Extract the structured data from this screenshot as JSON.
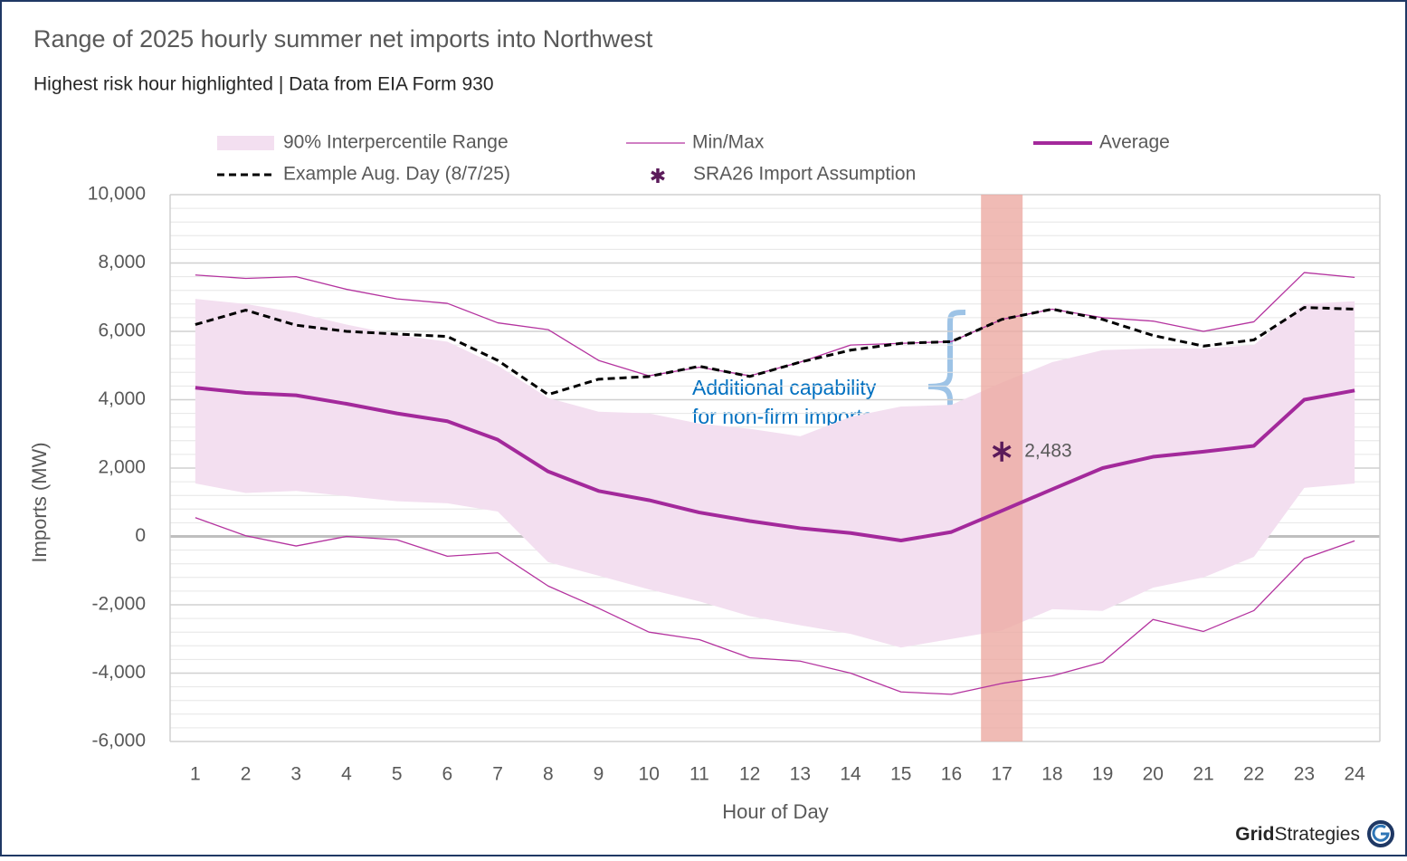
{
  "chart_data": {
    "type": "line",
    "title": "Range of 2025 hourly summer net imports into Northwest",
    "subtitle": "Highest risk hour highlighted | Data from EIA Form 930",
    "x_label": "Hour of Day",
    "y_label": "Imports (MW)",
    "categories": [
      "1",
      "2",
      "3",
      "4",
      "5",
      "6",
      "7",
      "8",
      "9",
      "10",
      "11",
      "12",
      "13",
      "14",
      "15",
      "16",
      "17",
      "18",
      "19",
      "20",
      "21",
      "22",
      "23",
      "24"
    ],
    "range": {
      "name": "90% Interpercentile Range",
      "color": "#f3dff0",
      "lower": [
        1550,
        1270,
        1330,
        1180,
        1030,
        970,
        730,
        -750,
        -1150,
        -1550,
        -1900,
        -2330,
        -2600,
        -2850,
        -3250,
        -3000,
        -2750,
        -2130,
        -2180,
        -1500,
        -1200,
        -600,
        1420,
        1550
      ],
      "upper": [
        6950,
        6800,
        6550,
        6200,
        5900,
        5700,
        5000,
        4050,
        3650,
        3600,
        3300,
        3150,
        2930,
        3500,
        3800,
        3850,
        4500,
        5100,
        5450,
        5500,
        5500,
        5600,
        6800,
        6880
      ]
    },
    "series": [
      {
        "name": "Min/Max",
        "color": "#b4339f",
        "style": "thin",
        "values": [
          7650,
          7550,
          7600,
          7230,
          6950,
          6820,
          6250,
          6050,
          5150,
          4700,
          4950,
          4700,
          5100,
          5600,
          5650,
          5700,
          6350,
          6650,
          6400,
          6300,
          6000,
          6280,
          7720,
          7580
        ]
      },
      {
        "name": "Min/Max",
        "color": "#b4339f",
        "style": "thin",
        "legend": false,
        "values": [
          550,
          20,
          -280,
          0,
          -100,
          -580,
          -480,
          -1450,
          -2100,
          -2800,
          -3020,
          -3550,
          -3650,
          -4000,
          -4550,
          -4620,
          -4300,
          -4080,
          -3680,
          -2430,
          -2780,
          -2170,
          -650,
          -130
        ]
      },
      {
        "name": "Average",
        "color": "#a3299b",
        "style": "thick",
        "values": [
          4350,
          4200,
          4130,
          3880,
          3600,
          3370,
          2830,
          1900,
          1330,
          1060,
          700,
          450,
          240,
          100,
          -120,
          130,
          750,
          1380,
          2000,
          2330,
          2480,
          2650,
          4000,
          4270
        ]
      },
      {
        "name": "Example Aug. Day (8/7/25)",
        "color": "#000000",
        "style": "dashed",
        "values": [
          6200,
          6620,
          6180,
          6000,
          5920,
          5850,
          5150,
          4150,
          4600,
          4680,
          4980,
          4680,
          5100,
          5450,
          5650,
          5700,
          6350,
          6650,
          6350,
          5880,
          5570,
          5750,
          6700,
          6650
        ]
      }
    ],
    "marker": {
      "name": "SRA26 Import Assumption",
      "category": "17",
      "value": 2483,
      "value_label": "2,483",
      "color": "#5b1a5a"
    },
    "highlight": {
      "category": "17",
      "color": "#ecaaa2"
    },
    "annotation": [
      "Additional capability",
      "for non-firm imports"
    ],
    "ylim": [
      -6000,
      10000
    ],
    "yticks": [
      {
        "value": -6000,
        "label": "-6,000"
      },
      {
        "value": -4000,
        "label": "-4,000"
      },
      {
        "value": -2000,
        "label": "-2,000"
      },
      0,
      {
        "value": 2000,
        "label": "2,000"
      },
      {
        "value": 4000,
        "label": "4,000"
      },
      {
        "value": 6000,
        "label": "6,000"
      },
      {
        "value": 8000,
        "label": "8,000"
      },
      {
        "value": 10000,
        "label": "10,000"
      }
    ],
    "minor_yticks": [
      -5600,
      -5200,
      -4800,
      -4400,
      -3600,
      -3200,
      -2800,
      -2400,
      -1600,
      -1200,
      -800,
      -400,
      400,
      800,
      1200,
      1600,
      2400,
      2800,
      3200,
      3600,
      4400,
      4800,
      5200,
      5600,
      6400,
      6800,
      7200,
      7600,
      8400,
      8800,
      9200,
      9600
    ],
    "grid": true,
    "legend": "top",
    "brand": [
      "Grid",
      "Strategies"
    ]
  }
}
